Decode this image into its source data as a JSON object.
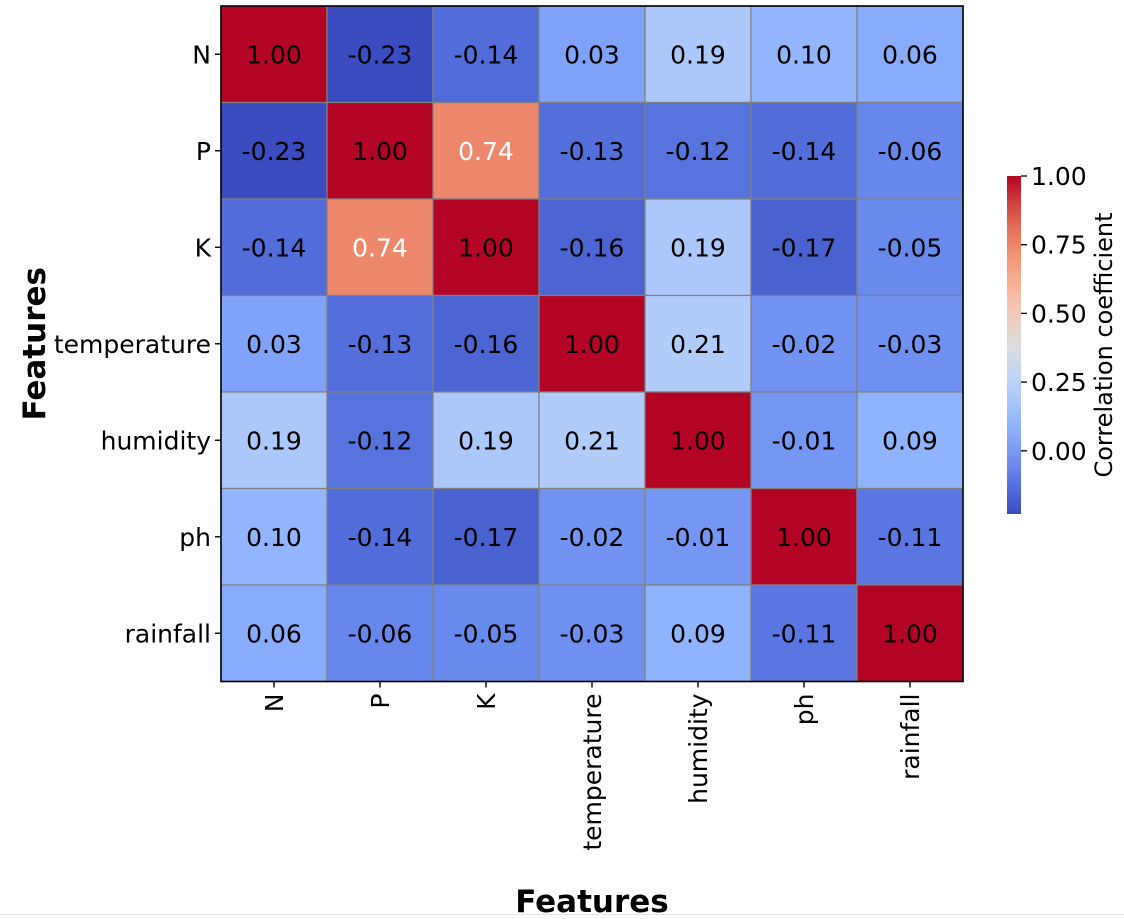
{
  "chart_data": {
    "type": "heatmap",
    "title": "",
    "xlabel": "Features",
    "ylabel": "Features",
    "x_categories": [
      "N",
      "P",
      "K",
      "temperature",
      "humidity",
      "ph",
      "rainfall"
    ],
    "y_categories": [
      "N",
      "P",
      "K",
      "temperature",
      "humidity",
      "ph",
      "rainfall"
    ],
    "values": [
      [
        1.0,
        -0.23,
        -0.14,
        0.03,
        0.19,
        0.1,
        0.06
      ],
      [
        -0.23,
        1.0,
        0.74,
        -0.13,
        -0.12,
        -0.14,
        -0.06
      ],
      [
        -0.14,
        0.74,
        1.0,
        -0.16,
        0.19,
        -0.17,
        -0.05
      ],
      [
        0.03,
        -0.13,
        -0.16,
        1.0,
        0.21,
        -0.02,
        -0.03
      ],
      [
        0.19,
        -0.12,
        0.19,
        0.21,
        1.0,
        -0.01,
        0.09
      ],
      [
        0.1,
        -0.14,
        -0.17,
        -0.02,
        -0.01,
        1.0,
        -0.11
      ],
      [
        0.06,
        -0.06,
        -0.05,
        -0.03,
        0.09,
        -0.11,
        1.0
      ]
    ],
    "cell_labels": [
      [
        "1.00",
        "-0.23",
        "-0.14",
        "0.03",
        "0.19",
        "0.10",
        "0.06"
      ],
      [
        "-0.23",
        "1.00",
        "0.74",
        "-0.13",
        "-0.12",
        "-0.14",
        "-0.06"
      ],
      [
        "-0.14",
        "0.74",
        "1.00",
        "-0.16",
        "0.19",
        "-0.17",
        "-0.05"
      ],
      [
        "0.03",
        "-0.13",
        "-0.16",
        "1.00",
        "0.21",
        "-0.02",
        "-0.03"
      ],
      [
        "0.19",
        "-0.12",
        "0.19",
        "0.21",
        "1.00",
        "-0.01",
        "0.09"
      ],
      [
        "0.10",
        "-0.14",
        "-0.17",
        "-0.02",
        "-0.01",
        "1.00",
        "-0.11"
      ],
      [
        "0.06",
        "-0.06",
        "-0.05",
        "-0.03",
        "0.09",
        "-0.11",
        "1.00"
      ]
    ],
    "colormap": "coolwarm",
    "value_range": [
      -0.23,
      1.0
    ],
    "colorbar": {
      "label": "Correlation coefficient",
      "ticks": [
        0.0,
        0.25,
        0.5,
        0.75,
        1.0
      ],
      "tick_labels": [
        "0.00",
        "0.25",
        "0.50",
        "0.75",
        "1.00"
      ],
      "placement": "right"
    },
    "colors": {
      "low": "#3b4cc0",
      "mid": "#dddddd",
      "high": "#b40426",
      "cell_border": "#808080",
      "text_dark": "#000000",
      "text_light": "#ffffff"
    },
    "grid": false
  }
}
